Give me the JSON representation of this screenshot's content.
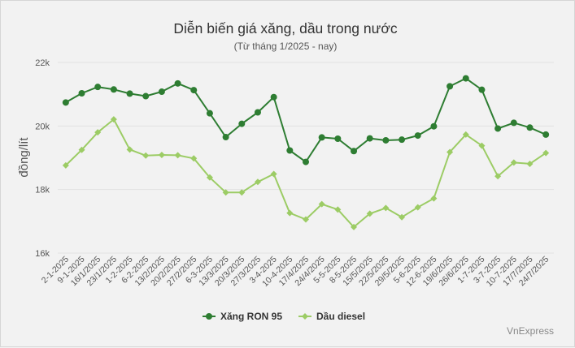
{
  "chart_data": {
    "type": "line",
    "title": "Diễn biến giá xăng, dầu trong nước",
    "subtitle": "(Từ tháng 1/2025 - nay)",
    "ylabel": "đồng/lít",
    "xlabel": "",
    "ylim": [
      16000,
      22000
    ],
    "yticks": [
      {
        "value": 16000,
        "label": "16k"
      },
      {
        "value": 18000,
        "label": "18k"
      },
      {
        "value": 20000,
        "label": "20k"
      },
      {
        "value": 22000,
        "label": "22k"
      }
    ],
    "grid": true,
    "legend_position": "bottom",
    "categories": [
      "2-1-2025",
      "9-1-2025",
      "16/1/2025",
      "23/1/2025",
      "1-2-2025",
      "6-2-2025",
      "13/2/2025",
      "20/2/2025",
      "27/2/2025",
      "6-3-2025",
      "13/3/2025",
      "20/3/2025",
      "27/3/2025",
      "3-4-2025",
      "10-4-2025",
      "17/4/2025",
      "24/4/2025",
      "5-5-2025",
      "8-5-2025",
      "15/5/2025",
      "22/5/2025",
      "29/5/2025",
      "5-6-2025",
      "12-6-2025",
      "19/6/2025",
      "26/6/2025",
      "1-7-2025",
      "3-7-2025",
      "10-7-2025",
      "17/7/2025",
      "24/7/2025"
    ],
    "series": [
      {
        "name": "Xăng RON 95",
        "color": "#2e7d32",
        "marker": "circle",
        "values": [
          20740,
          21030,
          21230,
          21150,
          21020,
          20940,
          21080,
          21340,
          21130,
          20400,
          19650,
          20070,
          20430,
          20910,
          19230,
          18870,
          19640,
          19600,
          19210,
          19610,
          19550,
          19570,
          19700,
          19990,
          21250,
          21500,
          21140,
          19920,
          20100,
          19950,
          19730
        ]
      },
      {
        "name": "Dầu diesel",
        "color": "#9ccc65",
        "marker": "diamond",
        "values": [
          18760,
          19250,
          19800,
          20210,
          19260,
          19070,
          19090,
          19080,
          18980,
          18380,
          17910,
          17910,
          18240,
          18490,
          17260,
          17060,
          17540,
          17370,
          16820,
          17240,
          17420,
          17130,
          17440,
          17720,
          19180,
          19730,
          19380,
          18420,
          18850,
          18810,
          19150
        ]
      }
    ]
  },
  "credit": "VnExpress"
}
